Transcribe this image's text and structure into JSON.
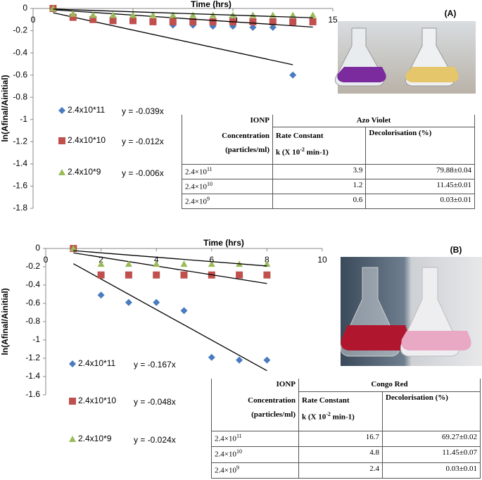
{
  "chart_data": [
    {
      "type": "scatter",
      "panel": "(A)",
      "x_label": "Time (hrs)",
      "y_label": "ln(Afinal/Ainitial)",
      "xlim": [
        0,
        15
      ],
      "xticks": [
        0,
        5,
        10,
        15
      ],
      "ylim": [
        -1.8,
        0
      ],
      "yticks": [
        0,
        -0.2,
        -0.4,
        -0.6,
        -0.8,
        -1,
        -1.2,
        -1.4,
        -1.6,
        -1.8
      ],
      "series": [
        {
          "name": "2.4x10*11",
          "color": "#4a7bc0",
          "marker": "diamond",
          "x": [
            1,
            2,
            3,
            4,
            5,
            6,
            7,
            8,
            9,
            10,
            11,
            12,
            13
          ],
          "values": [
            0,
            -0.06,
            -0.08,
            -0.08,
            -0.1,
            -0.12,
            -0.15,
            -0.15,
            -0.16,
            -0.16,
            -0.17,
            -0.17,
            -0.6
          ],
          "trendline": {
            "label": "y = -0.039x",
            "slope": -0.039
          }
        },
        {
          "name": "2.4x10*10",
          "color": "#c0504d",
          "marker": "square",
          "x": [
            1,
            2,
            3,
            4,
            5,
            6,
            7,
            8,
            9,
            10,
            11,
            12,
            13,
            14
          ],
          "values": [
            0,
            -0.08,
            -0.1,
            -0.11,
            -0.11,
            -0.12,
            -0.12,
            -0.12,
            -0.12,
            -0.12,
            -0.12,
            -0.12,
            -0.12,
            -0.12
          ],
          "trendline": {
            "label": "y = -0.012x",
            "slope": -0.012
          }
        },
        {
          "name": "2.4x10*9",
          "color": "#9bbb59",
          "marker": "triangle",
          "x": [
            1,
            2,
            3,
            4,
            5,
            6,
            7,
            8,
            9,
            10,
            11,
            12,
            13,
            14
          ],
          "values": [
            0,
            -0.05,
            -0.06,
            -0.06,
            -0.06,
            -0.06,
            -0.06,
            -0.06,
            -0.06,
            -0.06,
            -0.06,
            -0.06,
            -0.06,
            -0.06
          ],
          "trendline": {
            "label": "y = -0.006x",
            "slope": -0.006
          }
        }
      ]
    },
    {
      "type": "scatter",
      "panel": "(B)",
      "x_label": "Time (hrs)",
      "y_label": "ln(Afinal/Ainitial)",
      "xlim": [
        0,
        10
      ],
      "xticks": [
        0,
        2,
        4,
        6,
        8,
        10
      ],
      "ylim": [
        -1.6,
        0
      ],
      "yticks": [
        0,
        -0.2,
        -0.4,
        -0.6,
        -0.8,
        -1,
        -1.2,
        -1.4,
        -1.6
      ],
      "series": [
        {
          "name": "2.4x10*11",
          "color": "#4a7bc0",
          "marker": "diamond",
          "x": [
            1,
            2,
            3,
            4,
            5,
            6,
            7,
            8
          ],
          "values": [
            0,
            -0.51,
            -0.59,
            -0.59,
            -0.68,
            -1.19,
            -1.22,
            -1.22
          ],
          "trendline": {
            "label": "y = -0.167x",
            "slope": -0.167
          }
        },
        {
          "name": "2.4x10*10",
          "color": "#c0504d",
          "marker": "square",
          "x": [
            1,
            2,
            3,
            4,
            5,
            6,
            7,
            8
          ],
          "values": [
            0,
            -0.29,
            -0.29,
            -0.29,
            -0.29,
            -0.29,
            -0.29,
            -0.29
          ],
          "trendline": {
            "label": "y = -0.048x",
            "slope": -0.048
          }
        },
        {
          "name": "2.4x10*9",
          "color": "#9bbb59",
          "marker": "triangle",
          "x": [
            1,
            2,
            3,
            4,
            5,
            6,
            7,
            8
          ],
          "values": [
            0,
            -0.17,
            -0.17,
            -0.17,
            -0.17,
            -0.17,
            -0.17,
            -0.17
          ],
          "trendline": {
            "label": "y = -0.024x",
            "slope": -0.024
          }
        }
      ]
    }
  ],
  "tables": [
    {
      "h1": "IONP",
      "dye": "Azo Violet",
      "h2": "Concentration",
      "h3": "(particles/ml)",
      "rate_h": "Rate Constant",
      "k_h": "k (X 10",
      "k_exp": "-2",
      "k_unit": " min-1)",
      "dec_h": "Decolorisation (%)",
      "rows": [
        {
          "concentration": "2.4×10",
          "exponent": "11",
          "rate": 3.9,
          "decolorisation": "79.88±0.04"
        },
        {
          "concentration": "2.4×10",
          "exponent": "10",
          "rate": 1.2,
          "decolorisation": "11.45±0.01"
        },
        {
          "concentration": "2.4×10",
          "exponent": "9",
          "rate": 0.6,
          "decolorisation": "0.03±0.01"
        }
      ]
    },
    {
      "h1": "IONP",
      "dye": "Congo Red",
      "h2": "Concentration",
      "h3": "(particles/ml)",
      "rate_h": "Rate Constant",
      "k_h": "k (X 10",
      "k_exp": "-2",
      "k_unit": " min-1)",
      "dec_h": "Decolorisation (%)",
      "rows": [
        {
          "concentration": "2.4×10",
          "exponent": "11",
          "rate": 16.7,
          "decolorisation": "69.27±0.02"
        },
        {
          "concentration": "2.4×10",
          "exponent": "10",
          "rate": 4.8,
          "decolorisation": "11.45±0.07"
        },
        {
          "concentration": "2.4×10",
          "exponent": "9",
          "rate": 2.4,
          "decolorisation": "0.03±0.01"
        }
      ]
    }
  ]
}
